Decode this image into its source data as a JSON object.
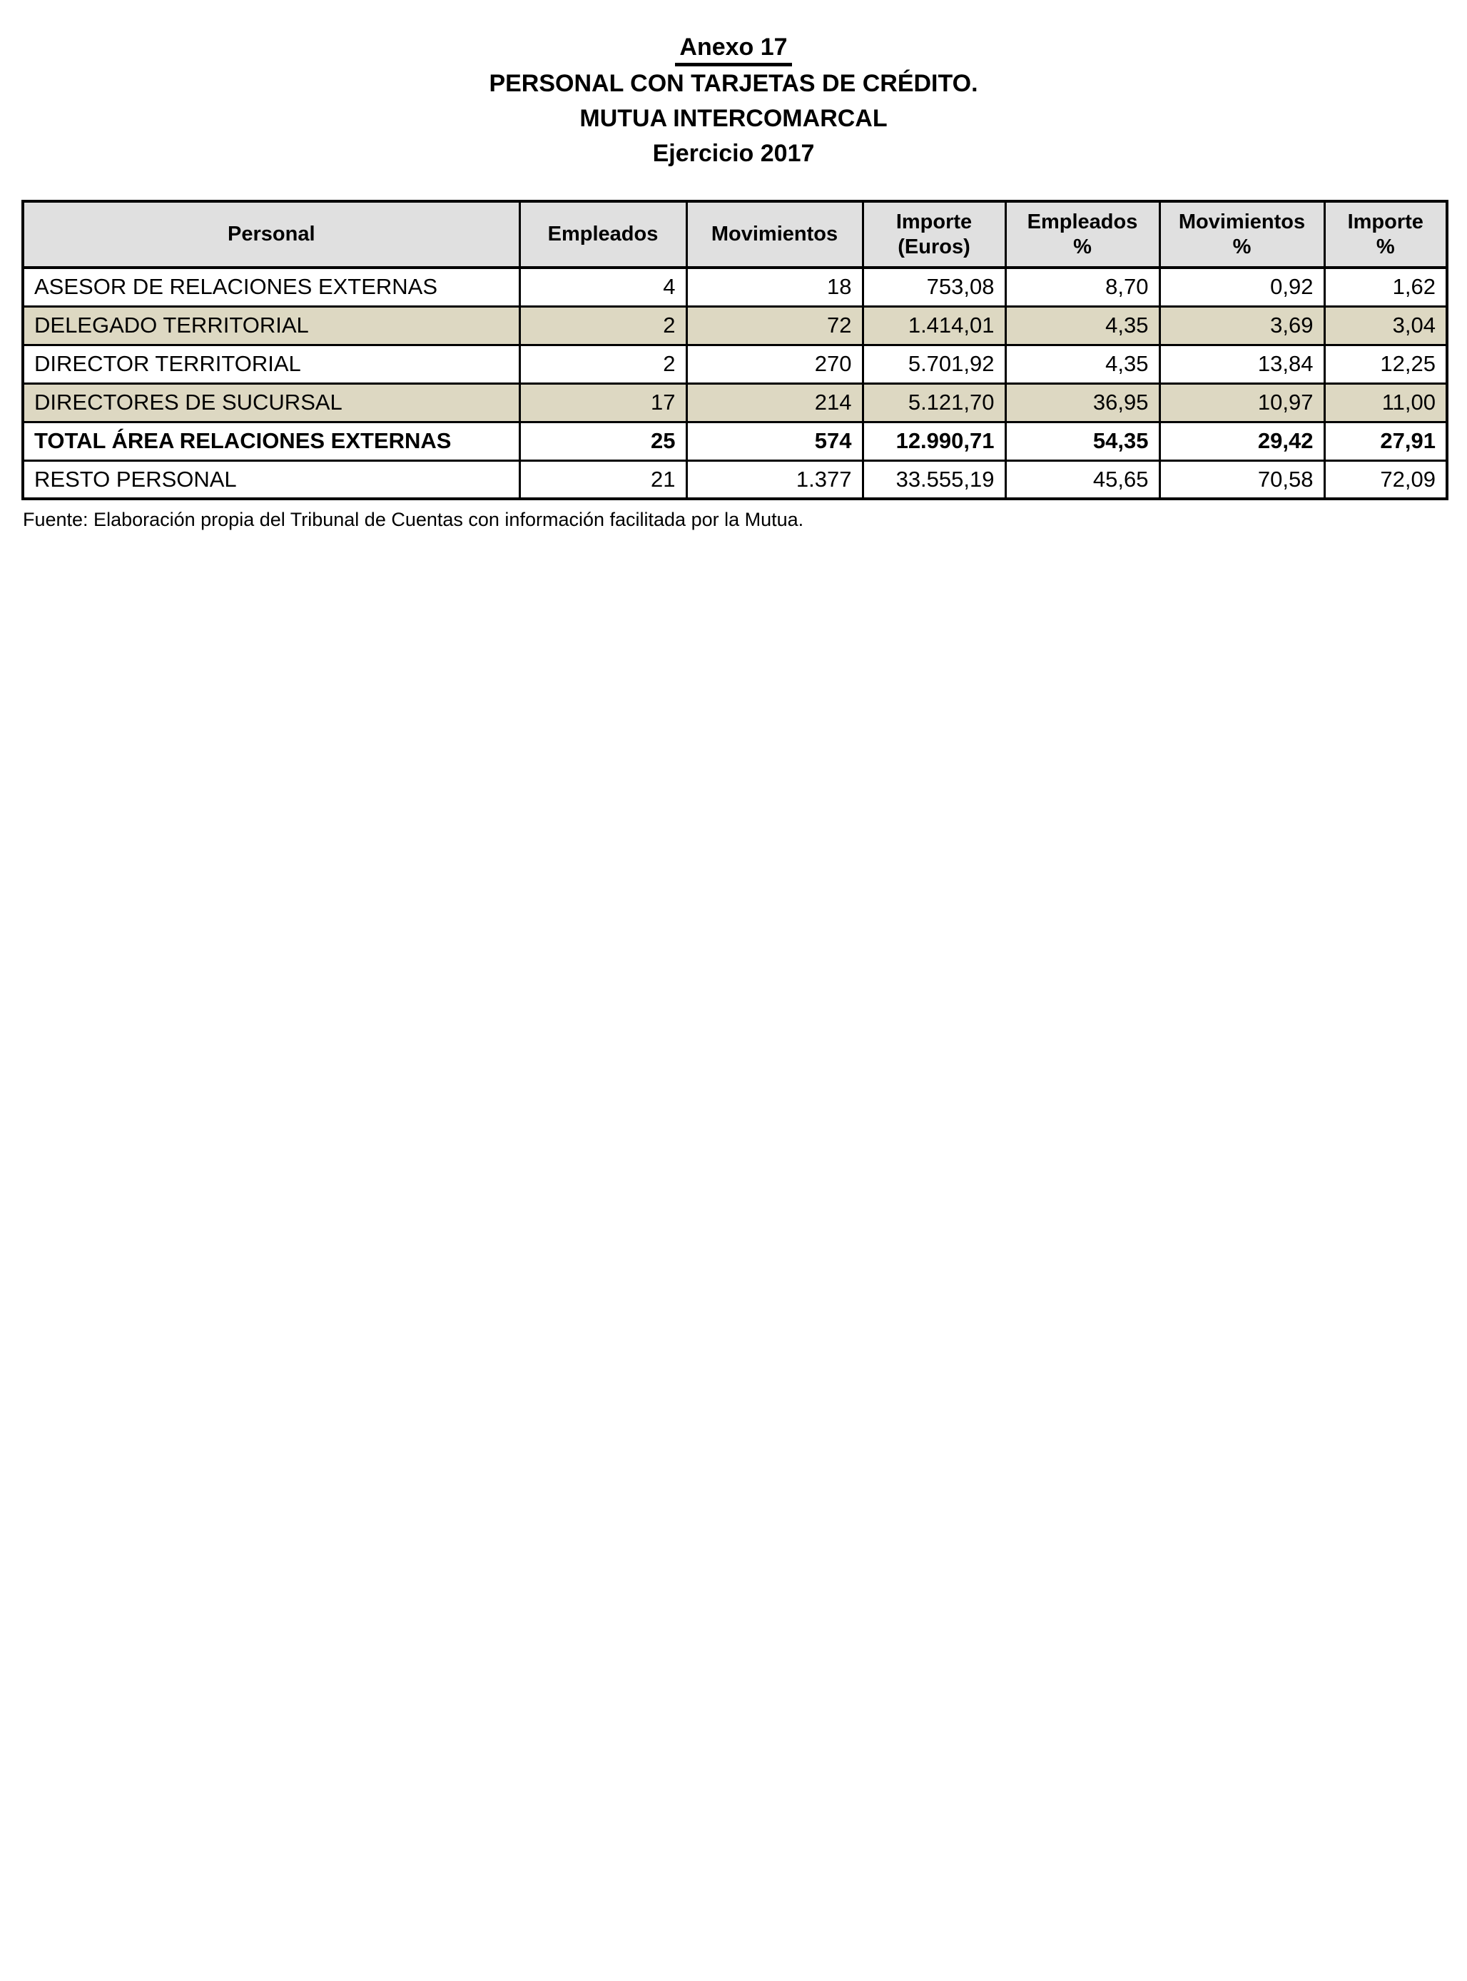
{
  "header": {
    "annex": "Anexo 17",
    "line2": "PERSONAL CON TARJETAS DE CRÉDITO.",
    "line3": "MUTUA INTERCOMARCAL",
    "line4": "Ejercicio 2017"
  },
  "table": {
    "headers": [
      [
        "Personal"
      ],
      [
        "Empleados"
      ],
      [
        "Movimientos"
      ],
      [
        "Importe",
        "(Euros)"
      ],
      [
        "Empleados",
        "%"
      ],
      [
        "Movimientos",
        "%"
      ],
      [
        "Importe",
        "%"
      ]
    ],
    "rows": [
      {
        "cells": [
          "ASESOR DE RELACIONES EXTERNAS",
          "4",
          "18",
          "753,08",
          "8,70",
          "0,92",
          "1,62"
        ]
      },
      {
        "cells": [
          "DELEGADO TERRITORIAL",
          "2",
          "72",
          "1.414,01",
          "4,35",
          "3,69",
          "3,04"
        ]
      },
      {
        "cells": [
          "DIRECTOR TERRITORIAL",
          "2",
          "270",
          "5.701,92",
          "4,35",
          "13,84",
          "12,25"
        ]
      },
      {
        "cells": [
          "DIRECTORES DE SUCURSAL",
          "17",
          "214",
          "5.121,70",
          "36,95",
          "10,97",
          "11,00"
        ]
      },
      {
        "cells": [
          "TOTAL ÁREA RELACIONES EXTERNAS",
          "25",
          "574",
          "12.990,71",
          "54,35",
          "29,42",
          "27,91"
        ]
      },
      {
        "cells": [
          "RESTO PERSONAL",
          "21",
          "1.377",
          "33.555,19",
          "45,65",
          "70,58",
          "72,09"
        ]
      }
    ]
  },
  "footer": {
    "source": "Fuente: Elaboración propia del Tribunal de Cuentas con información facilitada por la Mutua."
  },
  "colors": {
    "header_bg": "#e0e0e0",
    "shaded_row_bg": "#ddd8c2",
    "border": "#000000",
    "text": "#000000"
  }
}
